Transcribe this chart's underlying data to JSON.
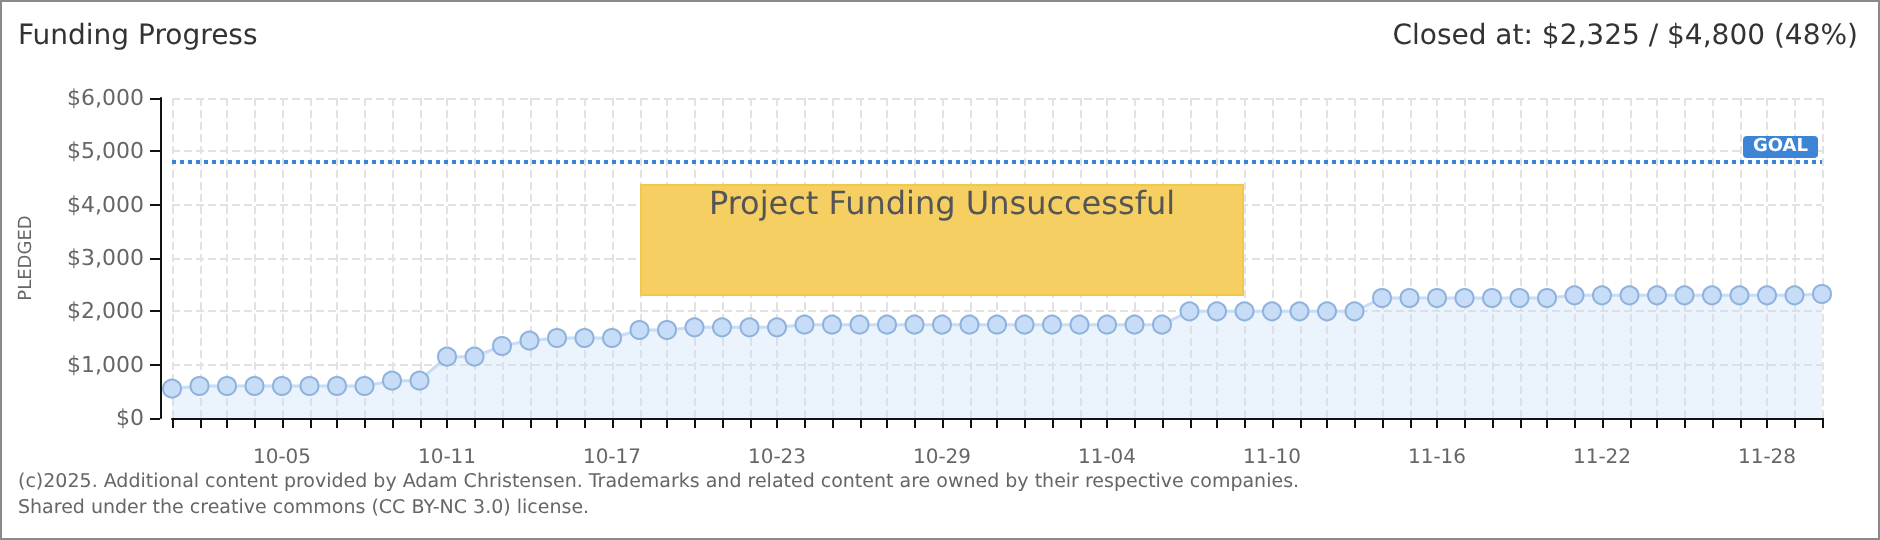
{
  "chart_data": {
    "type": "area",
    "title": "Funding Progress",
    "subtitle": "Closed at: $2,325 / $4,800 (48%)",
    "ylabel": "PLEDGED",
    "categories": [
      null,
      null,
      null,
      null,
      "10-05",
      null,
      null,
      null,
      null,
      null,
      "10-11",
      null,
      null,
      null,
      null,
      null,
      "10-17",
      null,
      null,
      null,
      null,
      null,
      "10-23",
      null,
      null,
      null,
      null,
      null,
      "10-29",
      null,
      null,
      null,
      null,
      null,
      "11-04",
      null,
      null,
      null,
      null,
      null,
      "11-10",
      null,
      null,
      null,
      null,
      null,
      "11-16",
      null,
      null,
      null,
      null,
      null,
      "11-22",
      null,
      null,
      null,
      null,
      null,
      "11-28",
      null,
      null
    ],
    "series": [
      {
        "color": "#c6dcf7",
        "values": [
          550,
          600,
          600,
          600,
          600,
          600,
          600,
          600,
          700,
          700,
          1150,
          1150,
          1350,
          1450,
          1500,
          1500,
          1500,
          1650,
          1650,
          1700,
          1700,
          1700,
          1700,
          1750,
          1750,
          1750,
          1750,
          1750,
          1750,
          1750,
          1750,
          1750,
          1750,
          1750,
          1750,
          1750,
          1750,
          2000,
          2000,
          2000,
          2000,
          2000,
          2000,
          2000,
          2250,
          2250,
          2250,
          2250,
          2250,
          2250,
          2250,
          2300,
          2300,
          2300,
          2300,
          2300,
          2300,
          2300,
          2300,
          2300,
          2325
        ]
      }
    ],
    "ylim": [
      0,
      6000
    ],
    "yticks": [
      {
        "value": 0,
        "label": "$0"
      },
      {
        "value": 1000,
        "label": "$1,000"
      },
      {
        "value": 2000,
        "label": "$2,000"
      },
      {
        "value": 3000,
        "label": "$3,000"
      },
      {
        "value": 4000,
        "label": "$4,000"
      },
      {
        "value": 5000,
        "label": "$5,000"
      },
      {
        "value": 6000,
        "label": "$6,000"
      }
    ],
    "ref_lines": [
      {
        "axis": "y",
        "value": 4800,
        "label": "GOAL",
        "color": "#3b84d6",
        "line_style": "dotted"
      }
    ],
    "annotations": [
      "Project Funding Unsuccessful",
      "(c)2025. Additional content provided by Adam Christensen. Trademarks and related content are owned by their respective companies.",
      "Shared under the creative commons (CC BY-NC 3.0) license."
    ],
    "grid": true,
    "marker": "circle"
  }
}
